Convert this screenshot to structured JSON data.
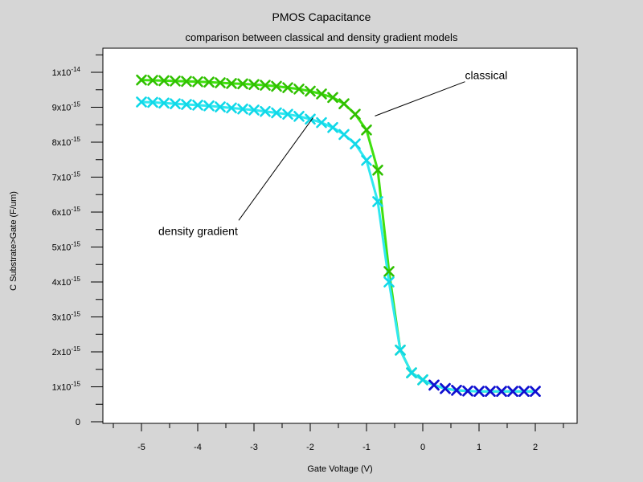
{
  "chart_data": {
    "type": "line",
    "title": "PMOS Capacitance",
    "subtitle": "comparison between classical and density gradient models",
    "xlabel": "Gate Voltage (V)",
    "ylabel": "C Substrate>Gate (F/um)",
    "xlim": [
      -5.75,
      2.75
    ],
    "ylim": [
      0,
      1.1e-14
    ],
    "grid": false,
    "x_ticks": [
      -5,
      -4,
      -3,
      -2,
      -1,
      0,
      1,
      2
    ],
    "x_tick_labels": [
      "-5",
      "-4",
      "-3",
      "-2",
      "-1",
      "0",
      "1",
      "2"
    ],
    "y_ticks": [
      0,
      1e-15,
      2e-15,
      3e-15,
      4e-15,
      5e-15,
      6e-15,
      7e-15,
      8e-15,
      9e-15,
      1e-14
    ],
    "y_tick_labels": [
      {
        "mantissa": "0",
        "base": "",
        "exponent": ""
      },
      {
        "mantissa": "1",
        "base": "x10",
        "exponent": "-15"
      },
      {
        "mantissa": "2",
        "base": "x10",
        "exponent": "-15"
      },
      {
        "mantissa": "3",
        "base": "x10",
        "exponent": "-15"
      },
      {
        "mantissa": "4",
        "base": "x10",
        "exponent": "-15"
      },
      {
        "mantissa": "5",
        "base": "x10",
        "exponent": "-15"
      },
      {
        "mantissa": "6",
        "base": "x10",
        "exponent": "-15"
      },
      {
        "mantissa": "7",
        "base": "x10",
        "exponent": "-15"
      },
      {
        "mantissa": "8",
        "base": "x10",
        "exponent": "-15"
      },
      {
        "mantissa": "9",
        "base": "x10",
        "exponent": "-15"
      },
      {
        "mantissa": "1",
        "base": "x10",
        "exponent": "-14"
      }
    ],
    "series": [
      {
        "name": "classical",
        "color": "#40e010",
        "marker_color": "#30c000",
        "x": [
          -5.0,
          -4.8,
          -4.6,
          -4.4,
          -4.2,
          -4.0,
          -3.8,
          -3.6,
          -3.4,
          -3.2,
          -3.0,
          -2.8,
          -2.6,
          -2.4,
          -2.2,
          -2.0,
          -1.8,
          -1.6,
          -1.4,
          -1.2,
          -1.0,
          -0.8,
          -0.6,
          -0.4,
          -0.2,
          0.0,
          0.2,
          0.4,
          0.6,
          0.8,
          1.0,
          1.2,
          1.4,
          1.6,
          1.8,
          2.0
        ],
        "y": [
          9.78e-15,
          9.77e-15,
          9.76e-15,
          9.75e-15,
          9.74e-15,
          9.73e-15,
          9.72e-15,
          9.7e-15,
          9.68e-15,
          9.67e-15,
          9.65e-15,
          9.63e-15,
          9.6e-15,
          9.56e-15,
          9.52e-15,
          9.46e-15,
          9.38e-15,
          9.28e-15,
          9.1e-15,
          8.8e-15,
          8.35e-15,
          7.2e-15,
          4.3e-15,
          2.05e-15,
          1.4e-15,
          1.2e-15,
          1.05e-15,
          9.5e-16,
          9e-16,
          8.8e-16,
          8.7e-16,
          8.7e-16,
          8.7e-16,
          8.7e-16,
          8.7e-16,
          8.7e-16
        ]
      },
      {
        "name": "density gradient",
        "color": "#30e8f0",
        "marker_color": "#10d8e8",
        "x": [
          -5.0,
          -4.8,
          -4.6,
          -4.4,
          -4.2,
          -4.0,
          -3.8,
          -3.6,
          -3.4,
          -3.2,
          -3.0,
          -2.8,
          -2.6,
          -2.4,
          -2.2,
          -2.0,
          -1.8,
          -1.6,
          -1.4,
          -1.2,
          -1.0,
          -0.8,
          -0.6,
          -0.4,
          -0.2,
          0.0,
          0.2,
          0.4,
          0.6,
          0.8,
          1.0,
          1.2,
          1.4,
          1.6,
          1.8,
          2.0
        ],
        "y": [
          9.15e-15,
          9.14e-15,
          9.12e-15,
          9.1e-15,
          9.08e-15,
          9.06e-15,
          9.04e-15,
          9.01e-15,
          8.98e-15,
          8.95e-15,
          8.92e-15,
          8.88e-15,
          8.84e-15,
          8.8e-15,
          8.74e-15,
          8.66e-15,
          8.56e-15,
          8.42e-15,
          8.22e-15,
          7.95e-15,
          7.48e-15,
          6.3e-15,
          4e-15,
          2.05e-15,
          1.4e-15,
          1.2e-15,
          1.05e-15,
          9.5e-16,
          9e-16,
          8.8e-16,
          8.7e-16,
          8.7e-16,
          8.7e-16,
          8.7e-16,
          8.7e-16,
          8.7e-16
        ]
      }
    ],
    "overlap_color": "#1010d0",
    "annotations": [
      {
        "text": "classical",
        "target_series": 0,
        "label_at": [
          0.75,
          9.8e-15
        ],
        "point_at": [
          -0.85,
          8.75e-15
        ]
      },
      {
        "text": "density gradient",
        "target_series": 1,
        "label_at": [
          -4.7,
          5.35e-15
        ],
        "point_at": [
          -1.95,
          8.7e-15
        ]
      }
    ]
  }
}
